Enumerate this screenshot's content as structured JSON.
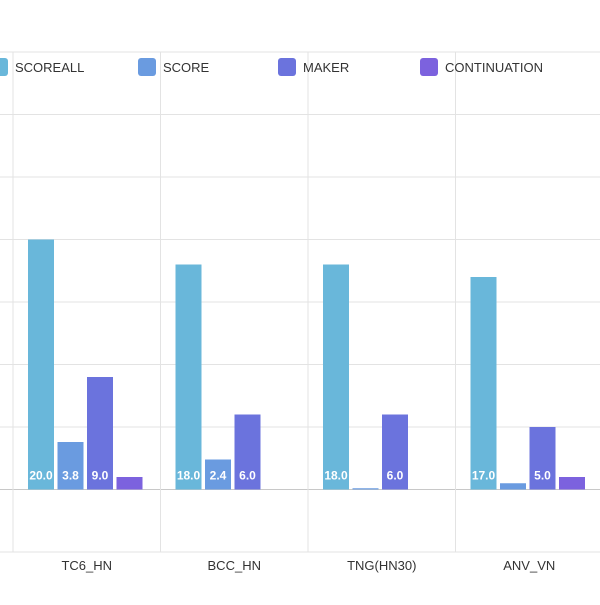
{
  "chart_data": {
    "type": "bar",
    "categories": [
      "TC6_HN",
      "BCC_HN",
      "TNG(HN30)",
      "ANV_VN"
    ],
    "series": [
      {
        "name": "SCOREALL",
        "values": [
          20.0,
          18.0,
          18.0,
          17.0
        ],
        "color": "#69b7da",
        "labels": [
          "20.0",
          "18.0",
          "18.0",
          "17.0"
        ]
      },
      {
        "name": "SCORE",
        "values": [
          3.8,
          2.4,
          0.1,
          0.5
        ],
        "color": "#6a9be0",
        "labels": [
          "3.8",
          "2.4",
          "",
          ""
        ]
      },
      {
        "name": "MAKER",
        "values": [
          9.0,
          6.0,
          6.0,
          5.0
        ],
        "color": "#6b73dd",
        "labels": [
          "9.0",
          "6.0",
          "6.0",
          "5.0"
        ]
      },
      {
        "name": "CONTINUATION",
        "values": [
          1.0,
          0.0,
          0.0,
          1.0
        ],
        "color": "#7c62de",
        "labels": [
          "",
          "",
          "",
          ""
        ]
      }
    ],
    "ylim": [
      -5,
      35
    ],
    "grid": true,
    "legend_position": "top"
  }
}
